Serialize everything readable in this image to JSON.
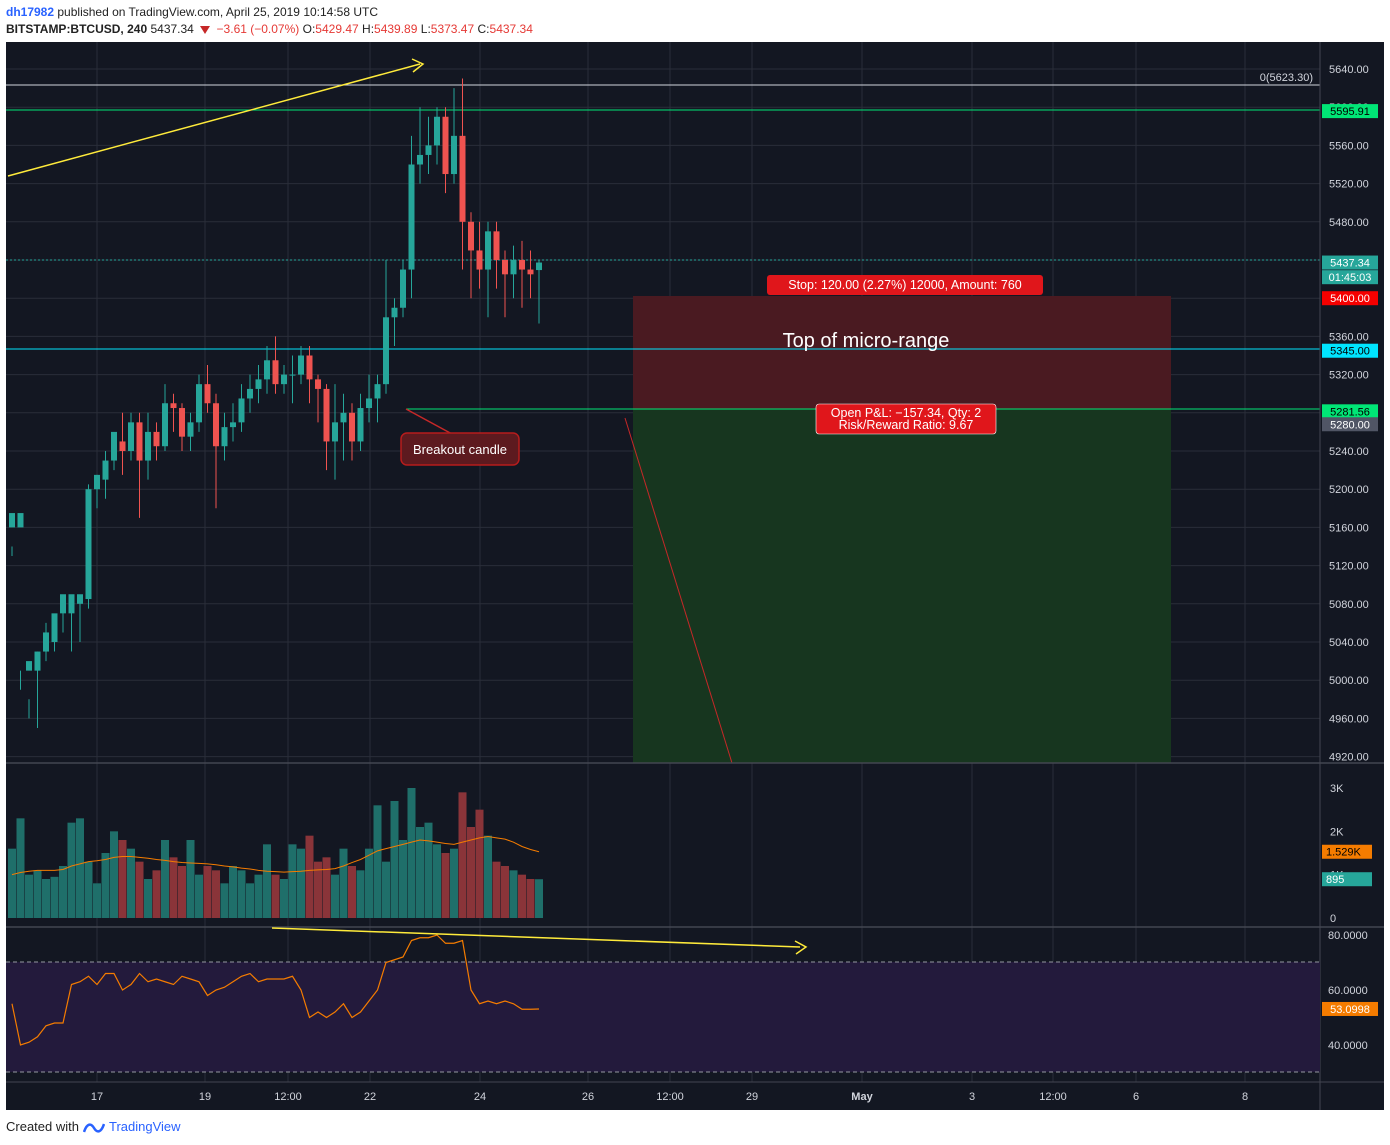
{
  "header": {
    "user": "dh17982",
    "published": "published on TradingView.com, April 25, 2019 10:14:58 UTC",
    "symbol": "BITSTAMP:BTCUSD, 240",
    "last": "5437.34",
    "change": "−3.61 (−0.07%)",
    "open_label": "O:",
    "open": "5429.47",
    "high_label": "H:",
    "high": "5439.89",
    "low_label": "L:",
    "low": "5373.47",
    "close_label": "C:",
    "close": "5437.34"
  },
  "colors": {
    "background": "#131722",
    "up": "#26a69a",
    "down": "#ef5350",
    "grid": "#2a2e39",
    "stop_zone": "#4a1a21",
    "target_zone": "#17361f",
    "rsi_band": "#231a3c",
    "annotation_yellow": "#ffeb3b"
  },
  "price_axis": {
    "ticks": [
      "5640.00",
      "5600.00",
      "5560.00",
      "5520.00",
      "5480.00",
      "5440.00",
      "5400.00",
      "5360.00",
      "5320.00",
      "5280.00",
      "5240.00",
      "5200.00",
      "5160.00",
      "5120.00",
      "5080.00",
      "5040.00",
      "5000.00",
      "4960.00",
      "4920.00"
    ],
    "labels": [
      {
        "text": "5595.91",
        "value": 5595.91,
        "bg": "#00e676",
        "fg": "#000000"
      },
      {
        "text": "5437.34",
        "value": 5437.34,
        "bg": "#26a69a",
        "fg": "#ffffff"
      },
      {
        "text": "01:45:03",
        "value": 5422,
        "bg": "#26a69a",
        "fg": "#ffffff"
      },
      {
        "text": "5400.00",
        "value": 5400,
        "bg": "#f50000",
        "fg": "#ffffff"
      },
      {
        "text": "5345.00",
        "value": 5345,
        "bg": "#00e5ff",
        "fg": "#000000"
      },
      {
        "text": "5281.56",
        "value": 5281.56,
        "bg": "#00e676",
        "fg": "#000000"
      },
      {
        "text": "5280.00",
        "value": 5268,
        "bg": "#505565",
        "fg": "#ffffff"
      }
    ]
  },
  "volume_axis": {
    "ticks": [
      "3K",
      "2K",
      "1K",
      "0"
    ],
    "values": [
      3000,
      2000,
      1000,
      0
    ],
    "labels": [
      {
        "text": "1.529K",
        "value": 1529,
        "bg": "#f57c00",
        "fg": "#000000"
      },
      {
        "text": "895",
        "value": 895,
        "bg": "#26a69a",
        "fg": "#ffffff"
      }
    ]
  },
  "rsi_axis": {
    "ticks": [
      "80.0000",
      "60.0000",
      "40.0000"
    ],
    "values": [
      80,
      60,
      40
    ],
    "labels": [
      {
        "text": "53.0998",
        "value": 53.0998,
        "bg": "#f57c00",
        "fg": "#ffffff"
      }
    ]
  },
  "time_axis": {
    "ticks": [
      "17",
      "19",
      "12:00",
      "22",
      "24",
      "26",
      "12:00",
      "29",
      "May",
      "3",
      "12:00",
      "6",
      "8"
    ],
    "bold": [
      "May"
    ]
  },
  "annotations": {
    "fib_label": "0(5623.30)",
    "stop_label": "Stop: 120.00 (2.27%) 12000, Amount: 760",
    "zone_text": "Top of micro-range",
    "pnl_line1": "Open P&L: −157.34, Qty: 2",
    "pnl_line2": "Risk/Reward Ratio: 9.67",
    "breakout_label": "Breakout candle"
  },
  "chart_data": {
    "type": "candlestick",
    "symbol": "BITSTAMP:BTCUSD",
    "interval": "240",
    "y_range": [
      4910,
      5660
    ],
    "candles": [
      [
        5160,
        5175,
        5140,
        5130
      ],
      [
        5160,
        5175,
        5010,
        4990
      ],
      [
        5010,
        5020,
        4980,
        4960
      ],
      [
        5010,
        5030,
        5030,
        4950
      ],
      [
        5030,
        5050,
        5060,
        5020
      ],
      [
        5040,
        5070,
        5065,
        5030
      ],
      [
        5070,
        5090,
        5080,
        5050
      ],
      [
        5070,
        5090,
        5080,
        5030
      ],
      [
        5080,
        5090,
        5085,
        5040
      ],
      [
        5085,
        5200,
        5205,
        5075
      ],
      [
        5200,
        5215,
        5215,
        5180
      ],
      [
        5210,
        5230,
        5240,
        5190
      ],
      [
        5230,
        5260,
        5250,
        5220
      ],
      [
        5250,
        5240,
        5280,
        5215
      ],
      [
        5240,
        5270,
        5280,
        5230
      ],
      [
        5270,
        5230,
        5280,
        5170
      ],
      [
        5230,
        5260,
        5280,
        5210
      ],
      [
        5260,
        5245,
        5270,
        5230
      ],
      [
        5245,
        5290,
        5310,
        5240
      ],
      [
        5290,
        5285,
        5300,
        5260
      ],
      [
        5285,
        5255,
        5290,
        5240
      ],
      [
        5255,
        5270,
        5280,
        5240
      ],
      [
        5270,
        5310,
        5320,
        5260
      ],
      [
        5310,
        5290,
        5330,
        5280
      ],
      [
        5290,
        5245,
        5300,
        5180
      ],
      [
        5245,
        5265,
        5280,
        5230
      ],
      [
        5265,
        5270,
        5290,
        5250
      ],
      [
        5270,
        5295,
        5310,
        5260
      ],
      [
        5295,
        5305,
        5320,
        5280
      ],
      [
        5305,
        5315,
        5330,
        5290
      ],
      [
        5315,
        5335,
        5350,
        5300
      ],
      [
        5335,
        5310,
        5360,
        5300
      ],
      [
        5310,
        5320,
        5330,
        5300
      ],
      [
        5320,
        5320,
        5340,
        5290
      ],
      [
        5320,
        5340,
        5350,
        5310
      ],
      [
        5340,
        5315,
        5350,
        5290
      ],
      [
        5315,
        5305,
        5320,
        5270
      ],
      [
        5305,
        5250,
        5310,
        5220
      ],
      [
        5250,
        5270,
        5310,
        5210
      ],
      [
        5270,
        5280,
        5300,
        5230
      ],
      [
        5280,
        5250,
        5290,
        5230
      ],
      [
        5250,
        5285,
        5300,
        5240
      ],
      [
        5285,
        5295,
        5320,
        5270
      ],
      [
        5295,
        5310,
        5320,
        5270
      ],
      [
        5310,
        5380,
        5440,
        5300
      ],
      [
        5380,
        5390,
        5400,
        5350
      ],
      [
        5390,
        5430,
        5440,
        5380
      ],
      [
        5430,
        5540,
        5570,
        5400
      ],
      [
        5540,
        5550,
        5600,
        5520
      ],
      [
        5550,
        5560,
        5590,
        5530
      ],
      [
        5560,
        5590,
        5600,
        5540
      ],
      [
        5590,
        5530,
        5600,
        5510
      ],
      [
        5530,
        5570,
        5620,
        5520
      ],
      [
        5570,
        5480,
        5630,
        5430
      ],
      [
        5480,
        5450,
        5490,
        5400
      ],
      [
        5450,
        5430,
        5480,
        5410
      ],
      [
        5430,
        5470,
        5480,
        5380
      ],
      [
        5470,
        5440,
        5480,
        5410
      ],
      [
        5440,
        5425,
        5450,
        5380
      ],
      [
        5425,
        5440,
        5455,
        5400
      ],
      [
        5440,
        5430,
        5460,
        5390
      ],
      [
        5430,
        5425,
        5450,
        5400
      ],
      [
        5429.47,
        5437.34,
        5439.89,
        5373.47
      ]
    ],
    "volume": [
      1600,
      2300,
      1000,
      1100,
      900,
      950,
      1200,
      2200,
      2300,
      1300,
      800,
      1500,
      2000,
      1800,
      1600,
      1300,
      900,
      1100,
      1800,
      1400,
      1200,
      1800,
      1000,
      1200,
      1100,
      800,
      1200,
      1100,
      800,
      1000,
      1700,
      1000,
      900,
      1700,
      1600,
      1900,
      1300,
      1400,
      1000,
      1600,
      1200,
      1100,
      1600,
      2600,
      1300,
      2700,
      1800,
      3000,
      2100,
      2200,
      1700,
      1500,
      1600,
      2900,
      2100,
      2500,
      1900,
      1300,
      1200,
      1100,
      1000,
      900,
      895
    ],
    "volume_ma": [
      1000,
      1050,
      1080,
      1100,
      1100,
      1100,
      1120,
      1200,
      1250,
      1300,
      1320,
      1350,
      1400,
      1420,
      1420,
      1400,
      1380,
      1350,
      1330,
      1300,
      1280,
      1270,
      1260,
      1250,
      1230,
      1200,
      1180,
      1150,
      1130,
      1100,
      1080,
      1070,
      1060,
      1070,
      1080,
      1100,
      1110,
      1120,
      1140,
      1200,
      1280,
      1350,
      1450,
      1550,
      1600,
      1650,
      1700,
      1750,
      1800,
      1780,
      1750,
      1720,
      1700,
      1750,
      1800,
      1850,
      1880,
      1850,
      1820,
      1750,
      1650,
      1580,
      1529
    ],
    "rsi": [
      55,
      40,
      41,
      43,
      47,
      48,
      48,
      62,
      63,
      65,
      62,
      66,
      66,
      60,
      62,
      66,
      63,
      64,
      63,
      62,
      65,
      64,
      63,
      58,
      60,
      61,
      63,
      65,
      66,
      63,
      64,
      64,
      64,
      65,
      60,
      50,
      52,
      50,
      52,
      55,
      50,
      52,
      56,
      60,
      70,
      71,
      72,
      78,
      79,
      79,
      80,
      77,
      77,
      78,
      60,
      55,
      56,
      55,
      56,
      55,
      53,
      53,
      53.0998
    ],
    "rsi_overbought": 70,
    "rsi_oversold": 30,
    "levels": {
      "fib_0": 5623.3,
      "resistance": 5595.91,
      "stop": 5400.0,
      "top_of_range": 5345.0,
      "entry": 5281.56,
      "target_min": 4910
    }
  }
}
